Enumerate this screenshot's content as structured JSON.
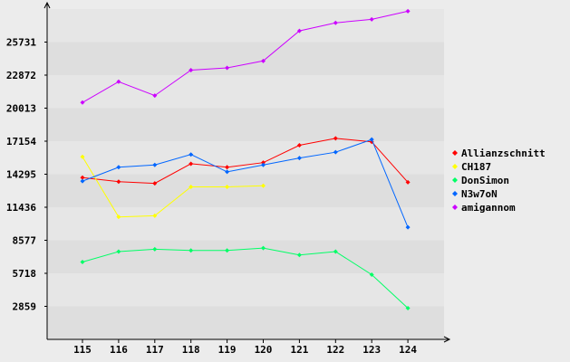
{
  "chart_data": {
    "type": "line",
    "categories": [
      "115",
      "116",
      "117",
      "118",
      "119",
      "120",
      "121",
      "122",
      "123",
      "124"
    ],
    "y_ticks": [
      "2859",
      "5718",
      "8577",
      "11436",
      "14295",
      "17154",
      "20013",
      "22872",
      "25731"
    ],
    "ylim": [
      0,
      28590
    ],
    "grid": "horizontal bands",
    "legend_position": "right",
    "series": [
      {
        "name": "Allianzschnitt",
        "color": "#ff0000",
        "values": [
          14000,
          13650,
          13500,
          15200,
          14900,
          15300,
          16800,
          17400,
          17100,
          13600
        ]
      },
      {
        "name": "CH187",
        "color": "#ffff00",
        "values": [
          15800,
          10600,
          10700,
          13200,
          13200,
          13300,
          null,
          null,
          null,
          null
        ]
      },
      {
        "name": "DonSimon",
        "color": "#00ff66",
        "values": [
          6700,
          7600,
          7800,
          7700,
          7700,
          7900,
          7300,
          7600,
          5600,
          2700
        ]
      },
      {
        "name": "N3w7oN",
        "color": "#0066ff",
        "values": [
          13700,
          14900,
          15100,
          16000,
          14500,
          15100,
          15700,
          16200,
          17300,
          9700
        ]
      },
      {
        "name": "amigannom",
        "color": "#cc00ff",
        "values": [
          20500,
          22300,
          21100,
          23300,
          23500,
          24100,
          26700,
          27400,
          27700,
          28400
        ]
      }
    ]
  }
}
